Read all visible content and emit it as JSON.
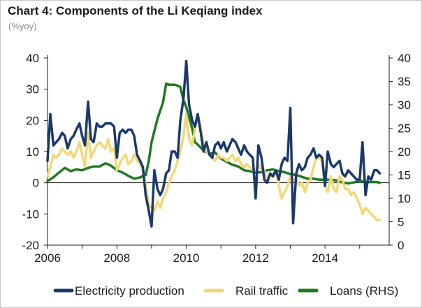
{
  "chart_data": {
    "type": "line",
    "title": "Chart 4: Components of the Li Keqiang index",
    "subtitle": "(%yoy)",
    "xlabel": "",
    "ylabel": "",
    "xlim": [
      2006.0,
      2015.85
    ],
    "ylim": [
      -20,
      40
    ],
    "y2lim": [
      0,
      40
    ],
    "x_ticks": [
      "2006",
      "2008",
      "2010",
      "2012",
      "2014"
    ],
    "y_ticks": [
      "40",
      "30",
      "20",
      "10",
      "0",
      "-10",
      "-20"
    ],
    "y2_ticks": [
      "40",
      "35",
      "30",
      "25",
      "20",
      "15",
      "10",
      "5",
      "0"
    ],
    "grid": false,
    "legend_position": "bottom",
    "colors": {
      "electricity": "#1b3a6b",
      "rail": "#f2d878",
      "loans": "#1f7a1f",
      "axis": "#1a1a1a"
    },
    "series": [
      {
        "name": "Electricity production",
        "axis": "left",
        "color": "#1b3a6b",
        "points": [
          [
            2006.0,
            7
          ],
          [
            2006.08,
            22
          ],
          [
            2006.17,
            12
          ],
          [
            2006.25,
            13
          ],
          [
            2006.33,
            14
          ],
          [
            2006.42,
            16
          ],
          [
            2006.5,
            15
          ],
          [
            2006.58,
            11
          ],
          [
            2006.67,
            14
          ],
          [
            2006.75,
            15
          ],
          [
            2006.83,
            17
          ],
          [
            2006.92,
            19
          ],
          [
            2007.0,
            15
          ],
          [
            2007.08,
            12
          ],
          [
            2007.17,
            26
          ],
          [
            2007.25,
            14
          ],
          [
            2007.33,
            13
          ],
          [
            2007.42,
            19
          ],
          [
            2007.5,
            18
          ],
          [
            2007.58,
            18
          ],
          [
            2007.67,
            19
          ],
          [
            2007.75,
            19
          ],
          [
            2007.83,
            19
          ],
          [
            2007.92,
            18
          ],
          [
            2008.0,
            8
          ],
          [
            2008.08,
            16
          ],
          [
            2008.17,
            17
          ],
          [
            2008.25,
            16
          ],
          [
            2008.33,
            17
          ],
          [
            2008.42,
            17
          ],
          [
            2008.5,
            15
          ],
          [
            2008.58,
            9
          ],
          [
            2008.67,
            7
          ],
          [
            2008.75,
            5
          ],
          [
            2008.83,
            -4
          ],
          [
            2008.92,
            -9
          ],
          [
            2009.0,
            -14
          ],
          [
            2009.08,
            4
          ],
          [
            2009.17,
            -2
          ],
          [
            2009.25,
            -4
          ],
          [
            2009.33,
            -2
          ],
          [
            2009.42,
            3
          ],
          [
            2009.5,
            4
          ],
          [
            2009.58,
            10
          ],
          [
            2009.67,
            10
          ],
          [
            2009.75,
            8
          ],
          [
            2009.83,
            20
          ],
          [
            2009.92,
            27
          ],
          [
            2010.0,
            39
          ],
          [
            2010.08,
            25
          ],
          [
            2010.17,
            20
          ],
          [
            2010.25,
            18
          ],
          [
            2010.33,
            22
          ],
          [
            2010.42,
            16
          ],
          [
            2010.5,
            10
          ],
          [
            2010.58,
            13
          ],
          [
            2010.67,
            9
          ],
          [
            2010.75,
            8
          ],
          [
            2010.83,
            12
          ],
          [
            2010.92,
            13
          ],
          [
            2011.0,
            11
          ],
          [
            2011.08,
            13
          ],
          [
            2011.17,
            10
          ],
          [
            2011.25,
            12
          ],
          [
            2011.33,
            14
          ],
          [
            2011.42,
            13
          ],
          [
            2011.5,
            11
          ],
          [
            2011.58,
            9
          ],
          [
            2011.67,
            12
          ],
          [
            2011.75,
            10
          ],
          [
            2011.83,
            9
          ],
          [
            2011.92,
            8
          ],
          [
            2012.0,
            -5
          ],
          [
            2012.08,
            12
          ],
          [
            2012.17,
            8
          ],
          [
            2012.25,
            1
          ],
          [
            2012.33,
            0
          ],
          [
            2012.42,
            3
          ],
          [
            2012.5,
            2
          ],
          [
            2012.58,
            4
          ],
          [
            2012.67,
            1
          ],
          [
            2012.75,
            6
          ],
          [
            2012.83,
            8
          ],
          [
            2012.92,
            7
          ],
          [
            2013.0,
            24
          ],
          [
            2013.08,
            -13
          ],
          [
            2013.17,
            3
          ],
          [
            2013.25,
            6
          ],
          [
            2013.33,
            4
          ],
          [
            2013.42,
            5
          ],
          [
            2013.5,
            8
          ],
          [
            2013.58,
            9
          ],
          [
            2013.67,
            11
          ],
          [
            2013.75,
            8
          ],
          [
            2013.83,
            9
          ],
          [
            2013.92,
            8
          ],
          [
            2014.0,
            -1
          ],
          [
            2014.08,
            10
          ],
          [
            2014.17,
            6
          ],
          [
            2014.25,
            5
          ],
          [
            2014.33,
            6
          ],
          [
            2014.42,
            7
          ],
          [
            2014.5,
            3
          ],
          [
            2014.58,
            2
          ],
          [
            2014.67,
            4
          ],
          [
            2014.75,
            3
          ],
          [
            2014.83,
            2
          ],
          [
            2014.92,
            1
          ],
          [
            2015.0,
            1
          ],
          [
            2015.08,
            13
          ],
          [
            2015.17,
            -4
          ],
          [
            2015.25,
            2
          ],
          [
            2015.33,
            1
          ],
          [
            2015.42,
            4
          ],
          [
            2015.5,
            4
          ],
          [
            2015.58,
            3
          ]
        ]
      },
      {
        "name": "Rail traffic",
        "axis": "left",
        "color": "#f2d878",
        "points": [
          [
            2006.0,
            2
          ],
          [
            2006.08,
            5
          ],
          [
            2006.17,
            9
          ],
          [
            2006.25,
            8
          ],
          [
            2006.33,
            9
          ],
          [
            2006.42,
            11
          ],
          [
            2006.5,
            10
          ],
          [
            2006.58,
            9
          ],
          [
            2006.67,
            10
          ],
          [
            2006.75,
            8
          ],
          [
            2006.83,
            10
          ],
          [
            2006.92,
            13
          ],
          [
            2007.0,
            9
          ],
          [
            2007.08,
            5
          ],
          [
            2007.17,
            16
          ],
          [
            2007.25,
            8
          ],
          [
            2007.33,
            10
          ],
          [
            2007.42,
            12
          ],
          [
            2007.5,
            13
          ],
          [
            2007.58,
            12
          ],
          [
            2007.67,
            11
          ],
          [
            2007.75,
            14
          ],
          [
            2007.83,
            10
          ],
          [
            2007.92,
            11
          ],
          [
            2008.0,
            4
          ],
          [
            2008.08,
            6
          ],
          [
            2008.17,
            8
          ],
          [
            2008.25,
            9
          ],
          [
            2008.33,
            6
          ],
          [
            2008.42,
            7
          ],
          [
            2008.5,
            9
          ],
          [
            2008.58,
            7
          ],
          [
            2008.67,
            6
          ],
          [
            2008.75,
            4
          ],
          [
            2008.83,
            -1
          ],
          [
            2008.92,
            -7
          ],
          [
            2009.0,
            -8
          ],
          [
            2009.08,
            -9
          ],
          [
            2009.17,
            -6
          ],
          [
            2009.25,
            -8
          ],
          [
            2009.33,
            -5
          ],
          [
            2009.42,
            -3
          ],
          [
            2009.5,
            0
          ],
          [
            2009.58,
            2
          ],
          [
            2009.67,
            4
          ],
          [
            2009.75,
            7
          ],
          [
            2009.83,
            10
          ],
          [
            2009.92,
            15
          ],
          [
            2010.0,
            22
          ],
          [
            2010.08,
            14
          ],
          [
            2010.17,
            12
          ],
          [
            2010.25,
            17
          ],
          [
            2010.33,
            21
          ],
          [
            2010.42,
            18
          ],
          [
            2010.5,
            12
          ],
          [
            2010.58,
            10
          ],
          [
            2010.67,
            9
          ],
          [
            2010.75,
            8
          ],
          [
            2010.83,
            7
          ],
          [
            2010.92,
            9
          ],
          [
            2011.0,
            8
          ],
          [
            2011.08,
            8
          ],
          [
            2011.17,
            7
          ],
          [
            2011.25,
            8
          ],
          [
            2011.33,
            9
          ],
          [
            2011.42,
            7
          ],
          [
            2011.5,
            8
          ],
          [
            2011.58,
            6
          ],
          [
            2011.67,
            5
          ],
          [
            2011.75,
            6
          ],
          [
            2011.83,
            5
          ],
          [
            2011.92,
            4
          ],
          [
            2012.0,
            4
          ],
          [
            2012.08,
            6
          ],
          [
            2012.17,
            4
          ],
          [
            2012.25,
            4
          ],
          [
            2012.33,
            1
          ],
          [
            2012.42,
            2
          ],
          [
            2012.5,
            3
          ],
          [
            2012.58,
            4
          ],
          [
            2012.67,
            -1
          ],
          [
            2012.75,
            -5
          ],
          [
            2012.83,
            -3
          ],
          [
            2012.92,
            -1
          ],
          [
            2013.0,
            2
          ],
          [
            2013.08,
            1
          ],
          [
            2013.17,
            1
          ],
          [
            2013.25,
            -1
          ],
          [
            2013.33,
            0
          ],
          [
            2013.42,
            -3
          ],
          [
            2013.5,
            0
          ],
          [
            2013.58,
            1
          ],
          [
            2013.67,
            5
          ],
          [
            2013.75,
            8
          ],
          [
            2013.83,
            8
          ],
          [
            2013.92,
            7
          ],
          [
            2014.0,
            -1
          ],
          [
            2014.08,
            -3
          ],
          [
            2014.17,
            2
          ],
          [
            2014.25,
            -2
          ],
          [
            2014.33,
            -3
          ],
          [
            2014.42,
            2
          ],
          [
            2014.5,
            1
          ],
          [
            2014.58,
            -2
          ],
          [
            2014.67,
            -2
          ],
          [
            2014.75,
            -4
          ],
          [
            2014.83,
            -3
          ],
          [
            2014.92,
            -5
          ],
          [
            2015.0,
            -7
          ],
          [
            2015.08,
            -10
          ],
          [
            2015.17,
            -8
          ],
          [
            2015.25,
            -9
          ],
          [
            2015.33,
            -10
          ],
          [
            2015.42,
            -11
          ],
          [
            2015.5,
            -12
          ],
          [
            2015.58,
            -12
          ]
        ]
      },
      {
        "name": "Loans (RHS)",
        "axis": "right",
        "color": "#1f7a1f",
        "points": [
          [
            2006.0,
            13.7
          ],
          [
            2006.17,
            14.5
          ],
          [
            2006.33,
            15.5
          ],
          [
            2006.5,
            16.5
          ],
          [
            2006.67,
            15.8
          ],
          [
            2006.83,
            16.2
          ],
          [
            2007.0,
            16.0
          ],
          [
            2007.17,
            16.5
          ],
          [
            2007.33,
            16.8
          ],
          [
            2007.5,
            16.8
          ],
          [
            2007.67,
            17.5
          ],
          [
            2007.83,
            17.0
          ],
          [
            2008.0,
            16.0
          ],
          [
            2008.17,
            15.5
          ],
          [
            2008.33,
            14.8
          ],
          [
            2008.5,
            14.2
          ],
          [
            2008.67,
            14.5
          ],
          [
            2008.83,
            15.0
          ],
          [
            2008.92,
            18.0
          ],
          [
            2009.0,
            22.0
          ],
          [
            2009.17,
            27.0
          ],
          [
            2009.33,
            30.5
          ],
          [
            2009.42,
            34.5
          ],
          [
            2009.5,
            34.3
          ],
          [
            2009.67,
            34.3
          ],
          [
            2009.83,
            33.8
          ],
          [
            2009.92,
            31.0
          ],
          [
            2010.0,
            29.5
          ],
          [
            2010.17,
            25.0
          ],
          [
            2010.25,
            22.0
          ],
          [
            2010.33,
            21.5
          ],
          [
            2010.5,
            20.2
          ],
          [
            2010.67,
            19.5
          ],
          [
            2010.83,
            19.8
          ],
          [
            2011.0,
            18.5
          ],
          [
            2011.17,
            17.8
          ],
          [
            2011.33,
            17.2
          ],
          [
            2011.5,
            16.8
          ],
          [
            2011.67,
            16.0
          ],
          [
            2011.83,
            15.8
          ],
          [
            2012.0,
            15.5
          ],
          [
            2012.17,
            15.6
          ],
          [
            2012.33,
            16.0
          ],
          [
            2012.5,
            16.2
          ],
          [
            2012.67,
            15.8
          ],
          [
            2012.83,
            15.6
          ],
          [
            2013.0,
            15.2
          ],
          [
            2013.17,
            15.0
          ],
          [
            2013.33,
            14.6
          ],
          [
            2013.5,
            14.2
          ],
          [
            2013.67,
            14.2
          ],
          [
            2013.83,
            14.0
          ],
          [
            2014.0,
            14.0
          ],
          [
            2014.17,
            14.0
          ],
          [
            2014.33,
            13.8
          ],
          [
            2014.5,
            13.4
          ],
          [
            2014.67,
            13.2
          ],
          [
            2014.83,
            13.4
          ],
          [
            2015.0,
            13.8
          ],
          [
            2015.17,
            13.5
          ],
          [
            2015.33,
            13.5
          ],
          [
            2015.5,
            13.5
          ],
          [
            2015.58,
            13.3
          ]
        ]
      }
    ]
  }
}
